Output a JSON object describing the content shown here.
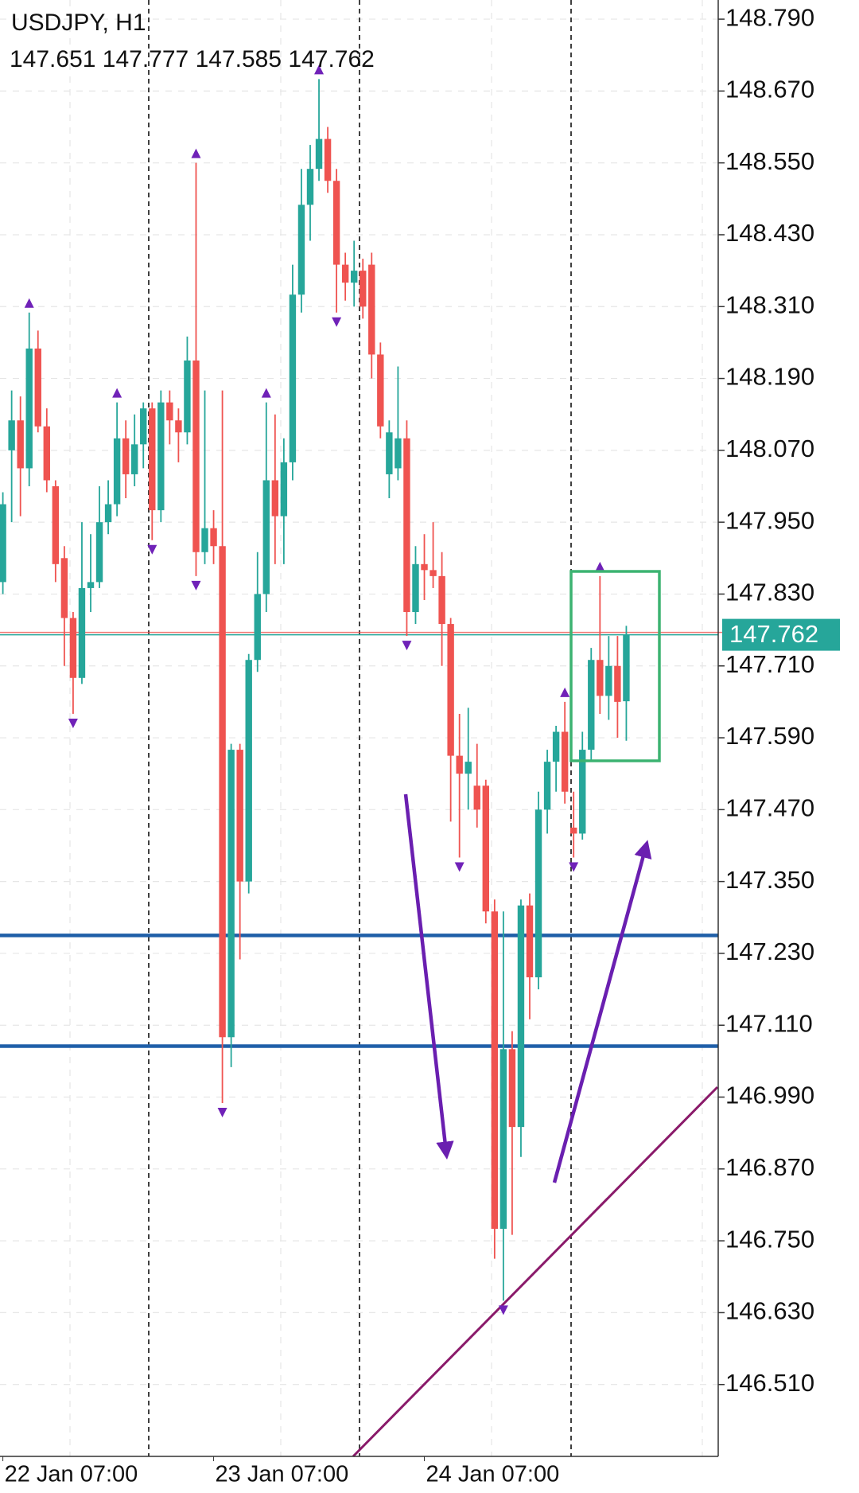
{
  "chart_data": {
    "type": "candlestick",
    "title": "USDJPY, H1",
    "categories": [
      "22 Jan 07:00",
      null,
      null,
      null,
      null,
      null,
      null,
      null,
      null,
      null,
      null,
      null,
      null,
      null,
      null,
      null,
      null,
      null,
      null,
      null,
      null,
      null,
      null,
      null,
      "23 Jan 07:00",
      null,
      null,
      null,
      null,
      null,
      null,
      null,
      null,
      null,
      null,
      null,
      null,
      null,
      null,
      null,
      null,
      null,
      null,
      null,
      null,
      null,
      null,
      null,
      "24 Jan 07:00",
      null,
      null,
      null,
      null,
      null,
      null,
      null,
      null,
      null,
      null,
      null,
      null,
      null,
      null,
      null,
      null,
      null,
      null,
      null,
      null,
      null,
      null,
      null
    ],
    "open": [
      147.85,
      148.07,
      148.12,
      148.04,
      148.24,
      148.11,
      148.01,
      147.89,
      147.79,
      147.69,
      147.84,
      147.85,
      147.95,
      147.98,
      148.09,
      148.03,
      148.08,
      148.14,
      147.97,
      148.15,
      148.12,
      148.1,
      148.22,
      147.9,
      147.94,
      147.91,
      147.09,
      147.57,
      147.35,
      147.72,
      147.83,
      148.02,
      147.96,
      148.05,
      148.33,
      148.48,
      148.54,
      148.59,
      148.52,
      148.38,
      148.35,
      148.37,
      148.38,
      148.23,
      148.03,
      148.04,
      148.09,
      147.8,
      147.88,
      147.87,
      147.86,
      147.78,
      147.56,
      147.53,
      147.51,
      147.51,
      147.3,
      146.77,
      147.07,
      146.94,
      147.31,
      147.19,
      147.47,
      147.55,
      147.6,
      147.44,
      147.43,
      147.57,
      147.72,
      147.66,
      147.71,
      147.651
    ],
    "high": [
      148.0,
      148.17,
      148.16,
      148.3,
      148.27,
      148.14,
      148.02,
      147.91,
      147.8,
      147.95,
      147.93,
      148.01,
      148.02,
      148.15,
      148.12,
      148.13,
      148.15,
      148.15,
      148.17,
      148.17,
      148.14,
      148.26,
      148.55,
      148.17,
      147.97,
      148.17,
      147.58,
      147.58,
      147.73,
      147.9,
      148.15,
      148.13,
      148.09,
      148.38,
      148.54,
      148.58,
      148.69,
      148.61,
      148.54,
      148.4,
      148.42,
      148.39,
      148.4,
      148.25,
      148.12,
      148.21,
      148.12,
      147.91,
      147.93,
      147.95,
      147.9,
      147.79,
      147.63,
      147.64,
      147.58,
      147.52,
      147.32,
      147.3,
      147.1,
      147.32,
      147.33,
      147.5,
      147.57,
      147.61,
      147.65,
      147.5,
      147.6,
      147.74,
      147.86,
      147.76,
      147.76,
      147.777
    ],
    "low": [
      147.83,
      147.95,
      147.96,
      148.01,
      148.1,
      148.0,
      147.85,
      147.71,
      147.63,
      147.68,
      147.8,
      147.84,
      147.93,
      147.96,
      147.99,
      148.01,
      148.04,
      147.92,
      147.95,
      148.08,
      148.05,
      148.08,
      147.86,
      147.88,
      147.88,
      146.98,
      147.04,
      147.22,
      147.33,
      147.7,
      147.8,
      147.88,
      147.88,
      148.02,
      148.3,
      148.42,
      148.52,
      148.5,
      148.3,
      148.32,
      148.31,
      148.29,
      148.19,
      148.09,
      147.99,
      148.02,
      147.76,
      147.78,
      147.82,
      147.84,
      147.71,
      147.45,
      147.39,
      147.47,
      147.44,
      147.28,
      146.72,
      146.65,
      146.76,
      146.89,
      147.12,
      147.17,
      147.43,
      147.5,
      147.48,
      147.39,
      147.42,
      147.55,
      147.63,
      147.62,
      147.59,
      147.585
    ],
    "close": [
      147.98,
      148.12,
      148.04,
      148.24,
      148.11,
      148.02,
      147.88,
      147.79,
      147.69,
      147.84,
      147.85,
      147.95,
      147.98,
      148.09,
      148.03,
      148.08,
      148.14,
      147.97,
      148.15,
      148.12,
      148.1,
      148.22,
      147.9,
      147.94,
      147.91,
      147.09,
      147.57,
      147.35,
      147.72,
      147.83,
      148.02,
      147.96,
      148.05,
      148.33,
      148.48,
      148.54,
      148.59,
      148.52,
      148.38,
      148.35,
      148.37,
      148.31,
      148.23,
      148.11,
      148.1,
      148.09,
      147.8,
      147.88,
      147.87,
      147.86,
      147.78,
      147.56,
      147.53,
      147.55,
      147.47,
      147.3,
      146.77,
      147.07,
      146.94,
      147.31,
      147.19,
      147.47,
      147.55,
      147.6,
      147.5,
      147.43,
      147.57,
      147.72,
      147.66,
      147.71,
      147.65,
      147.762
    ],
    "up_color": "#26a69a",
    "down_color": "#ef5350",
    "fractals_up": [
      3,
      13,
      22,
      30,
      36,
      64,
      68
    ],
    "fractals_down": [
      8,
      17,
      22,
      25,
      38,
      46,
      52,
      57,
      65
    ],
    "fractal_color": "#7022b8",
    "levels": [
      147.26,
      147.075
    ],
    "level_color": "#1f5fa8",
    "ylim": [
      146.39,
      148.822
    ],
    "yticks": [
      {
        "value": 148.79,
        "label": "148.790"
      },
      {
        "value": 148.67,
        "label": "148.670"
      },
      {
        "value": 148.55,
        "label": "148.550"
      },
      {
        "value": 148.43,
        "label": "148.430"
      },
      {
        "value": 148.31,
        "label": "148.310"
      },
      {
        "value": 148.19,
        "label": "148.190"
      },
      {
        "value": 148.07,
        "label": "148.070"
      },
      {
        "value": 147.95,
        "label": "147.950"
      },
      {
        "value": 147.83,
        "label": "147.830"
      },
      {
        "value": 147.71,
        "label": "147.710"
      },
      {
        "value": 147.59,
        "label": "147.590"
      },
      {
        "value": 147.47,
        "label": "147.470"
      },
      {
        "value": 147.35,
        "label": "147.350"
      },
      {
        "value": 147.23,
        "label": "147.230"
      },
      {
        "value": 147.11,
        "label": "147.110"
      },
      {
        "value": 146.99,
        "label": "146.990"
      },
      {
        "value": 146.87,
        "label": "146.870"
      },
      {
        "value": 146.75,
        "label": "146.750"
      },
      {
        "value": 146.63,
        "label": "146.630"
      },
      {
        "value": 146.51,
        "label": "146.510"
      }
    ],
    "grid": true
  }
}
